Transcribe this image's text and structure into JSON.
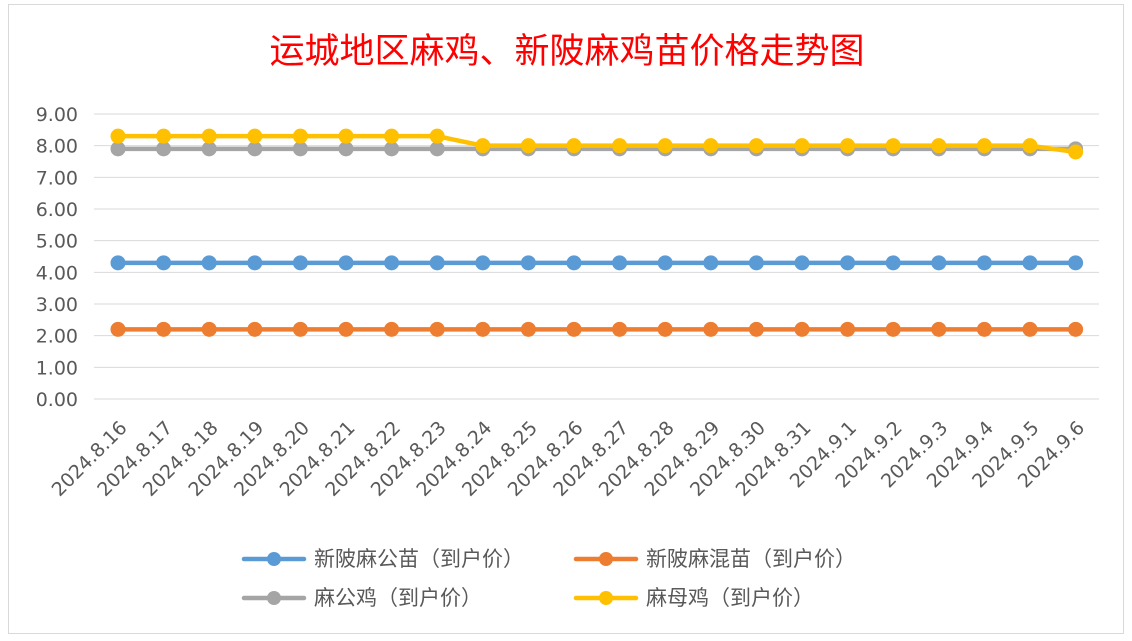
{
  "chart_data": {
    "type": "line",
    "title": "运城地区麻鸡、新陂麻鸡苗价格走势图",
    "xlabel": "",
    "ylabel": "",
    "ylim": [
      0,
      9
    ],
    "ytick_values": [
      0,
      1,
      2,
      3,
      4,
      5,
      6,
      7,
      8,
      9
    ],
    "ytick_labels": [
      "0.00",
      "1.00",
      "2.00",
      "3.00",
      "4.00",
      "5.00",
      "6.00",
      "7.00",
      "8.00",
      "9.00"
    ],
    "grid": true,
    "legend_position": "bottom",
    "categories": [
      "2024.8.16",
      "2024.8.17",
      "2024.8.18",
      "2024.8.19",
      "2024.8.20",
      "2024.8.21",
      "2024.8.22",
      "2024.8.23",
      "2024.8.24",
      "2024.8.25",
      "2024.8.26",
      "2024.8.27",
      "2024.8.28",
      "2024.8.29",
      "2024.8.30",
      "2024.8.31",
      "2024.9.1",
      "2024.9.2",
      "2024.9.3",
      "2024.9.4",
      "2024.9.5",
      "2024.9.6"
    ],
    "series": [
      {
        "name": "新陂麻公苗（到户价）",
        "color": "#5b9bd5",
        "values": [
          4.3,
          4.3,
          4.3,
          4.3,
          4.3,
          4.3,
          4.3,
          4.3,
          4.3,
          4.3,
          4.3,
          4.3,
          4.3,
          4.3,
          4.3,
          4.3,
          4.3,
          4.3,
          4.3,
          4.3,
          4.3,
          4.3
        ]
      },
      {
        "name": "新陂麻混苗（到户价）",
        "color": "#ed7d31",
        "values": [
          2.2,
          2.2,
          2.2,
          2.2,
          2.2,
          2.2,
          2.2,
          2.2,
          2.2,
          2.2,
          2.2,
          2.2,
          2.2,
          2.2,
          2.2,
          2.2,
          2.2,
          2.2,
          2.2,
          2.2,
          2.2,
          2.2
        ]
      },
      {
        "name": "麻公鸡（到户价）",
        "color": "#a5a5a5",
        "values": [
          7.9,
          7.9,
          7.9,
          7.9,
          7.9,
          7.9,
          7.9,
          7.9,
          7.9,
          7.9,
          7.9,
          7.9,
          7.9,
          7.9,
          7.9,
          7.9,
          7.9,
          7.9,
          7.9,
          7.9,
          7.9,
          7.9
        ]
      },
      {
        "name": "麻母鸡（到户价）",
        "color": "#ffc000",
        "values": [
          8.3,
          8.3,
          8.3,
          8.3,
          8.3,
          8.3,
          8.3,
          8.3,
          8.0,
          8.0,
          8.0,
          8.0,
          8.0,
          8.0,
          8.0,
          8.0,
          8.0,
          8.0,
          8.0,
          8.0,
          8.0,
          7.8
        ]
      }
    ],
    "title_color": "#ff0000",
    "axis_text_color": "#595959",
    "gridline_color": "#d9d9d9"
  }
}
